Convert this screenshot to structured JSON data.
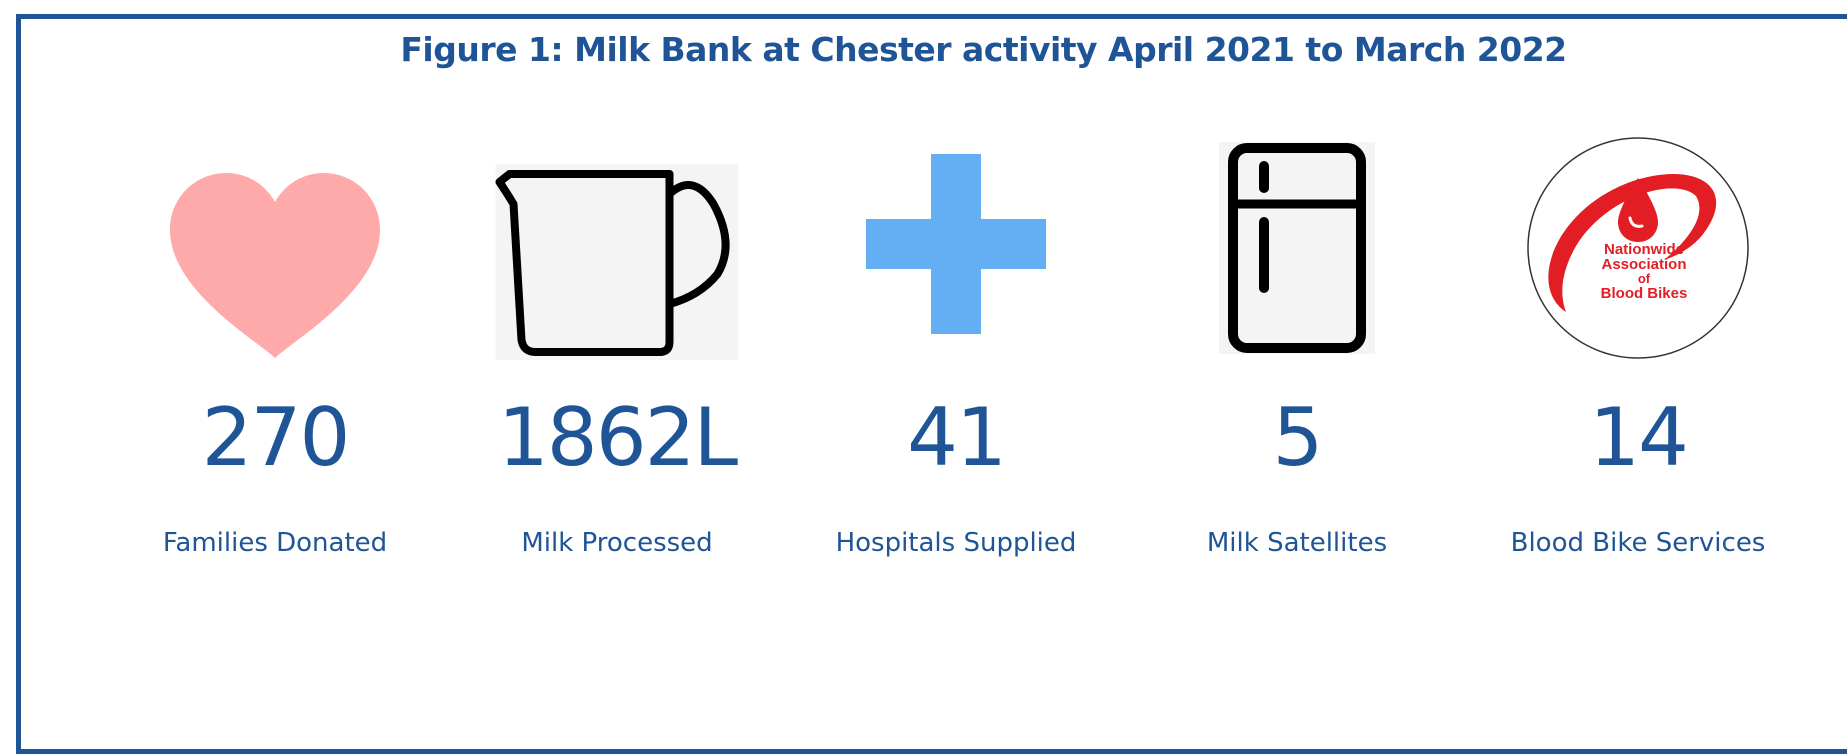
{
  "figure": {
    "title": "Figure 1: Milk Bank at Chester activity April 2021 to March 2022"
  },
  "stats": [
    {
      "value": "270",
      "label": "Families Donated",
      "icon": "heart-icon",
      "color": "#ffaaaa"
    },
    {
      "value": "1862L",
      "label": "Milk Processed",
      "icon": "jug-icon",
      "color": "#000000"
    },
    {
      "value": "41",
      "label": "Hospitals Supplied",
      "icon": "plus-icon",
      "color": "#64aff4"
    },
    {
      "value": "5",
      "label": "Milk Satellites",
      "icon": "fridge-icon",
      "color": "#000000"
    },
    {
      "value": "14",
      "label": "Blood Bike Services",
      "icon": "blood-bikes-logo",
      "color": "#e21d24"
    }
  ],
  "logo": {
    "line1": "Nationwide",
    "line2": "Association",
    "line3": "of",
    "line4": "Blood Bikes"
  },
  "colors": {
    "primary": "#1f5596",
    "frame": "#1f5596"
  }
}
